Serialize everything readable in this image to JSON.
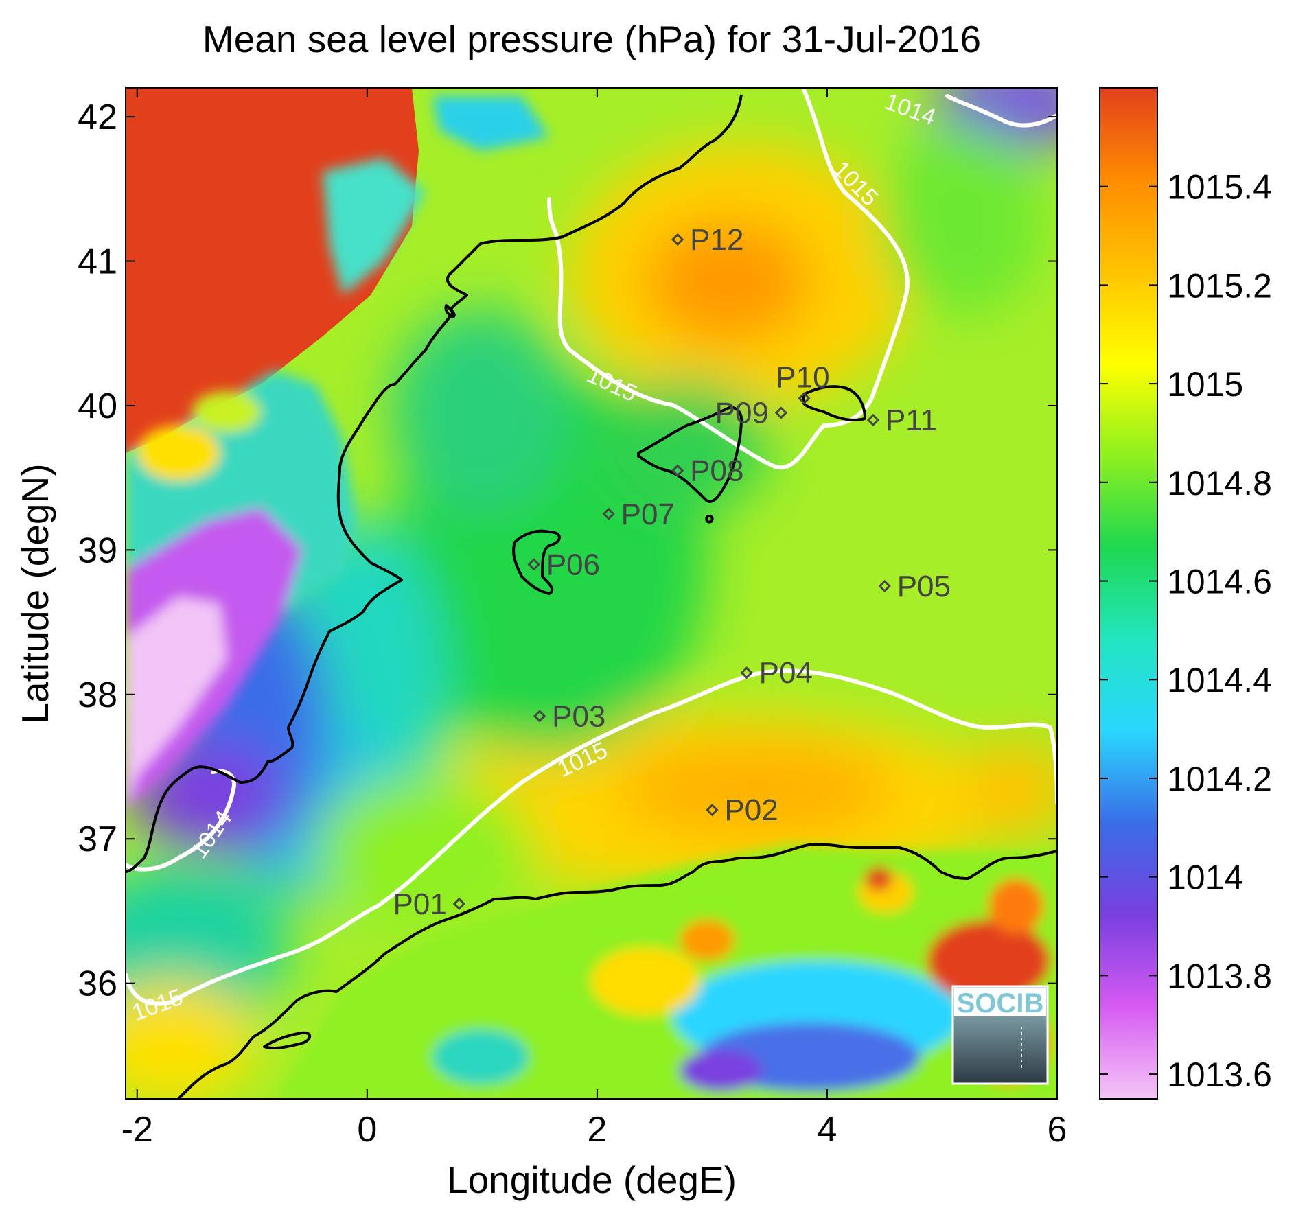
{
  "title": "Mean sea level pressure (hPa) for 31-Jul-2016",
  "xlabel": "Longitude (degE)",
  "ylabel": "Latitude (degN)",
  "colors": {
    "colormap": [
      "#f5c6f7",
      "#d65bf2",
      "#7a3fe0",
      "#3a6de8",
      "#2ad6ff",
      "#22e5c0",
      "#1ed850",
      "#8ff020",
      "#ffff00",
      "#ffc400",
      "#ff8c00",
      "#e2401c"
    ],
    "land": "#e2401c",
    "coast": "#000000",
    "contour": "#ffffff",
    "station": "#444444"
  },
  "chart_data": {
    "type": "heatmap",
    "title": "Mean sea level pressure (hPa) for 31-Jul-2016",
    "xlabel": "Longitude (degE)",
    "ylabel": "Latitude (degN)",
    "xlim": [
      -2.1,
      6.0
    ],
    "ylim": [
      35.2,
      42.2
    ],
    "x_ticks": [
      -2,
      0,
      2,
      4,
      6
    ],
    "y_ticks": [
      36,
      37,
      38,
      39,
      40,
      41,
      42
    ],
    "colorbar": {
      "range": [
        1013.55,
        1015.6
      ],
      "ticks": [
        1013.6,
        1013.8,
        1014,
        1014.2,
        1014.4,
        1014.6,
        1014.8,
        1015,
        1015.2,
        1015.4
      ]
    },
    "contour_labels": [
      {
        "value": 1014,
        "lon": 4.7,
        "lat": 42.0,
        "rotation": 20
      },
      {
        "value": 1015,
        "lon": 4.2,
        "lat": 41.5,
        "rotation": 45
      },
      {
        "value": 1015,
        "lon": 2.1,
        "lat": 40.1,
        "rotation": 25
      },
      {
        "value": 1015,
        "lon": 1.9,
        "lat": 37.5,
        "rotation": -25
      },
      {
        "value": 1014,
        "lon": -1.3,
        "lat": 37.0,
        "rotation": -55
      },
      {
        "value": 1015,
        "lon": -1.8,
        "lat": 35.8,
        "rotation": -20
      }
    ],
    "stations": [
      {
        "name": "P01",
        "lon": 0.8,
        "lat": 36.55
      },
      {
        "name": "P02",
        "lon": 3.0,
        "lat": 37.2
      },
      {
        "name": "P03",
        "lon": 1.5,
        "lat": 37.85
      },
      {
        "name": "P04",
        "lon": 3.3,
        "lat": 38.15
      },
      {
        "name": "P05",
        "lon": 4.5,
        "lat": 38.75
      },
      {
        "name": "P06",
        "lon": 1.45,
        "lat": 38.9
      },
      {
        "name": "P07",
        "lon": 2.1,
        "lat": 39.25
      },
      {
        "name": "P08",
        "lon": 2.7,
        "lat": 39.55
      },
      {
        "name": "P09",
        "lon": 3.6,
        "lat": 39.95
      },
      {
        "name": "P10",
        "lon": 3.8,
        "lat": 40.05
      },
      {
        "name": "P11",
        "lon": 4.4,
        "lat": 39.9
      },
      {
        "name": "P12",
        "lon": 2.7,
        "lat": 41.15
      }
    ]
  },
  "logo": {
    "text": "SOCIB"
  }
}
